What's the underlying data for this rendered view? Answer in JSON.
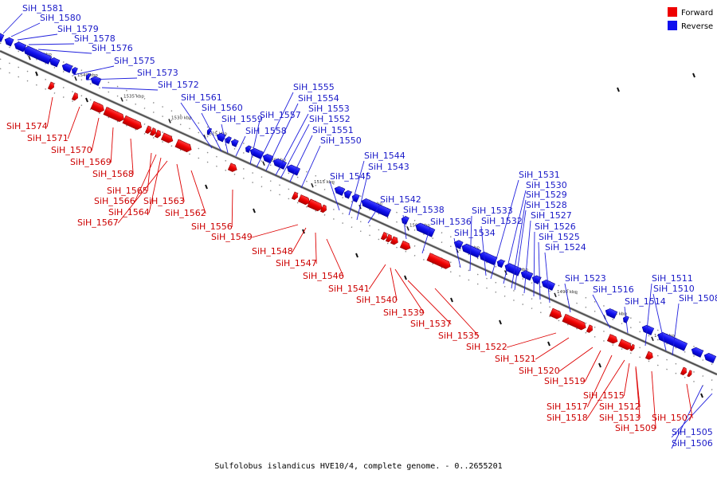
{
  "legend": {
    "forward_label": "Forward",
    "reverse_label": "Reverse",
    "forward_color": "#ee0000",
    "reverse_color": "#1010ee"
  },
  "footer": {
    "caption": "Sulfolobus islandicus HVE10/4, complete genome. - 0..2655201"
  },
  "ticks": [
    "1545 kbp",
    "1540 kbp",
    "1535 kbp",
    "1530 kbp",
    "1525 kbp",
    "1520 kbp",
    "1515 kbp",
    "1510 kbp",
    "1505 kbp",
    "1500 kbp",
    "1495 kbp",
    "1490 kbp",
    "1485 kbp",
    "1480 kbp"
  ],
  "reverse_genes": [
    "SiH_1581",
    "SiH_1580",
    "SiH_1579",
    "SiH_1578",
    "SiH_1576",
    "SiH_1575",
    "SiH_1573",
    "SiH_1572",
    "SiH_1561",
    "SiH_1560",
    "SiH_1559",
    "SiH_1558",
    "SiH_1557",
    "SiH_1555",
    "SiH_1554",
    "SiH_1553",
    "SiH_1552",
    "SiH_1551",
    "SiH_1550",
    "SiH_1545",
    "SiH_1544",
    "SiH_1543",
    "SiH_1542",
    "SiH_1538",
    "SiH_1536",
    "SiH_1534",
    "SiH_1533",
    "SiH_1532",
    "SiH_1531",
    "SiH_1530",
    "SiH_1529",
    "SiH_1528",
    "SiH_1527",
    "SiH_1526",
    "SiH_1525",
    "SiH_1524",
    "SiH_1523",
    "SiH_1516",
    "SiH_1514",
    "SiH_1511",
    "SiH_1510",
    "SiH_1508",
    "SiH_1506",
    "SiH_1505"
  ],
  "forward_genes": [
    "SiH_1574",
    "SiH_1571",
    "SiH_1570",
    "SiH_1569",
    "SiH_1568",
    "SiH_1565",
    "SiH_1566",
    "SiH_1564",
    "SiH_1567",
    "SiH_1563",
    "SiH_1562",
    "SiH_1556",
    "SiH_1549",
    "SiH_1548",
    "SiH_1547",
    "SiH_1546",
    "SiH_1541",
    "SiH_1540",
    "SiH_1539",
    "SiH_1537",
    "SiH_1535",
    "SiH_1522",
    "SiH_1521",
    "SiH_1520",
    "SiH_1519",
    "SiH_1517",
    "SiH_1518",
    "SiH_1515",
    "SiH_1512",
    "SiH_1513",
    "SiH_1509",
    "SiH_1507"
  ]
}
